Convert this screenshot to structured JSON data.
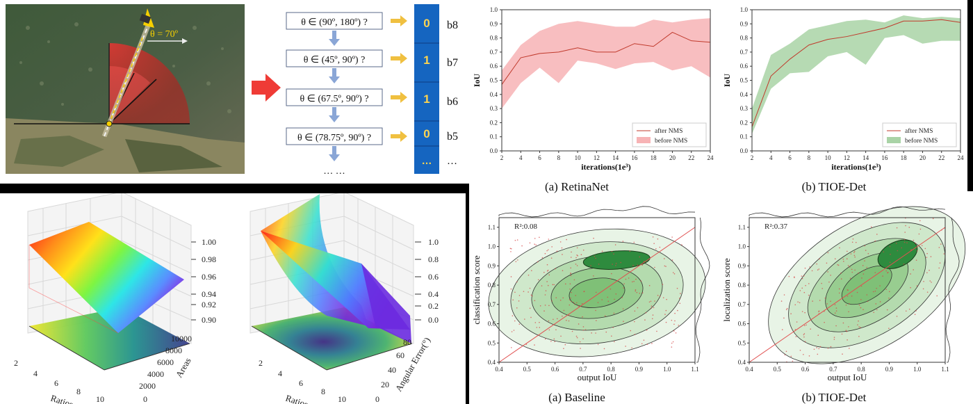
{
  "angle_coding": {
    "angle_label": "θ = 70º",
    "questions": [
      "θ ∈ (90º, 180º) ?",
      "θ ∈ (45º, 90º) ?",
      "θ ∈ (67.5º, 90º) ?",
      "θ ∈ (78.75º, 90º) ?"
    ],
    "more": "… …",
    "bits": [
      {
        "value": "0",
        "label": "b8"
      },
      {
        "value": "1",
        "label": "b7"
      },
      {
        "value": "1",
        "label": "b6"
      },
      {
        "value": "0",
        "label": "b5"
      },
      {
        "value": "…",
        "label": "…"
      }
    ],
    "colors": {
      "bit_box": "#1565c0",
      "bit_text": "#ffd54f",
      "arrow": "#f0c040",
      "big_arrow": "#e53935"
    }
  },
  "chart_data": [
    {
      "type": "line",
      "caption": "(a) RetinaNet",
      "xlabel": "iterations(1e³)",
      "ylabel": "IoU",
      "x": [
        2,
        4,
        6,
        8,
        10,
        12,
        14,
        16,
        18,
        20,
        22,
        24
      ],
      "x_ticks": [
        "2",
        "4",
        "6",
        "8",
        "10",
        "12",
        "14",
        "16",
        "18",
        "20",
        "22",
        "24"
      ],
      "y_ticks": [
        "0.0",
        "0.1",
        "0.2",
        "0.3",
        "0.4",
        "0.5",
        "0.6",
        "0.7",
        "0.8",
        "0.9",
        "1.0"
      ],
      "xlim": [
        2,
        24
      ],
      "ylim": [
        0,
        1
      ],
      "series": [
        {
          "name": "after NMS",
          "values": [
            0.47,
            0.66,
            0.69,
            0.7,
            0.73,
            0.7,
            0.7,
            0.76,
            0.74,
            0.84,
            0.78,
            0.77
          ]
        },
        {
          "name": "before NMS",
          "lower": [
            0.3,
            0.48,
            0.59,
            0.48,
            0.64,
            0.62,
            0.58,
            0.62,
            0.63,
            0.57,
            0.6,
            0.52
          ],
          "upper": [
            0.57,
            0.75,
            0.85,
            0.9,
            0.92,
            0.9,
            0.88,
            0.88,
            0.93,
            0.91,
            0.93,
            0.94
          ]
        }
      ],
      "legend": "bottom-right",
      "colors": {
        "line": "#c0392b",
        "band": "#f7b3b5"
      }
    },
    {
      "type": "line",
      "caption": "(b) TIOE-Det",
      "xlabel": "iterations(1e³)",
      "ylabel": "IoU",
      "x": [
        2,
        4,
        6,
        8,
        10,
        12,
        14,
        16,
        18,
        20,
        22,
        24
      ],
      "x_ticks": [
        "2",
        "4",
        "6",
        "8",
        "10",
        "12",
        "14",
        "16",
        "18",
        "20",
        "22",
        "24"
      ],
      "y_ticks": [
        "0.0",
        "0.1",
        "0.2",
        "0.3",
        "0.4",
        "0.5",
        "0.6",
        "0.7",
        "0.8",
        "0.9",
        "1.0"
      ],
      "xlim": [
        2,
        24
      ],
      "ylim": [
        0,
        1
      ],
      "series": [
        {
          "name": "after NMS",
          "values": [
            0.17,
            0.53,
            0.65,
            0.75,
            0.79,
            0.81,
            0.84,
            0.87,
            0.92,
            0.92,
            0.93,
            0.91
          ]
        },
        {
          "name": "before NMS",
          "lower": [
            0.12,
            0.44,
            0.55,
            0.56,
            0.67,
            0.7,
            0.61,
            0.8,
            0.82,
            0.76,
            0.78,
            0.78
          ],
          "upper": [
            0.3,
            0.68,
            0.76,
            0.86,
            0.89,
            0.92,
            0.93,
            0.91,
            0.96,
            0.94,
            0.95,
            0.94
          ]
        }
      ],
      "legend": "bottom-right",
      "colors": {
        "line": "#c0392b",
        "band": "#a9d3a6"
      }
    },
    {
      "type": "scatter",
      "caption": "(a) Baseline",
      "xlabel": "output IoU",
      "ylabel": "classification score",
      "annotation": "R²:0.08",
      "x_ticks": [
        "0.4",
        "0.5",
        "0.6",
        "0.7",
        "0.8",
        "0.9",
        "1.0",
        "1.1"
      ],
      "y_ticks": [
        "0.4",
        "0.5",
        "0.6",
        "0.7",
        "0.8",
        "0.9",
        "1.0",
        "1.1"
      ],
      "xlim": [
        0.4,
        1.1
      ],
      "ylim": [
        0.4,
        1.15
      ],
      "r2": 0.08,
      "density_center": {
        "x": 0.82,
        "y": 0.93
      }
    },
    {
      "type": "scatter",
      "caption": "(b) TIOE-Det",
      "xlabel": "output IoU",
      "ylabel": "localization score",
      "annotation": "R²:0.37",
      "x_ticks": [
        "0.4",
        "0.5",
        "0.6",
        "0.7",
        "0.8",
        "0.9",
        "1.0",
        "1.1"
      ],
      "y_ticks": [
        "0.4",
        "0.5",
        "0.6",
        "0.7",
        "0.8",
        "0.9",
        "1.0",
        "1.1"
      ],
      "xlim": [
        0.4,
        1.1
      ],
      "ylim": [
        0.4,
        1.15
      ],
      "r2": 0.37,
      "density_center": {
        "x": 0.93,
        "y": 0.96
      }
    }
  ],
  "surfaces": [
    {
      "xlabel": "Ratios",
      "ylabel": "Areas",
      "x_ticks": [
        "2",
        "4",
        "6",
        "8",
        "10"
      ],
      "y_ticks": [
        "0",
        "2000",
        "4000",
        "6000",
        "8000",
        "10000"
      ],
      "z_ticks": [
        "0.90",
        "0.92",
        "0.94",
        "0.96",
        "0.98",
        "1.00"
      ]
    },
    {
      "xlabel": "Ratios",
      "ylabel": "Angular Error(°)",
      "x_ticks": [
        "2",
        "4",
        "6",
        "8",
        "10"
      ],
      "y_ticks": [
        "0",
        "20",
        "40",
        "60",
        "80"
      ],
      "z_ticks": [
        "0.0",
        "0.2",
        "0.4",
        "0.6",
        "0.8",
        "1.0"
      ]
    }
  ]
}
